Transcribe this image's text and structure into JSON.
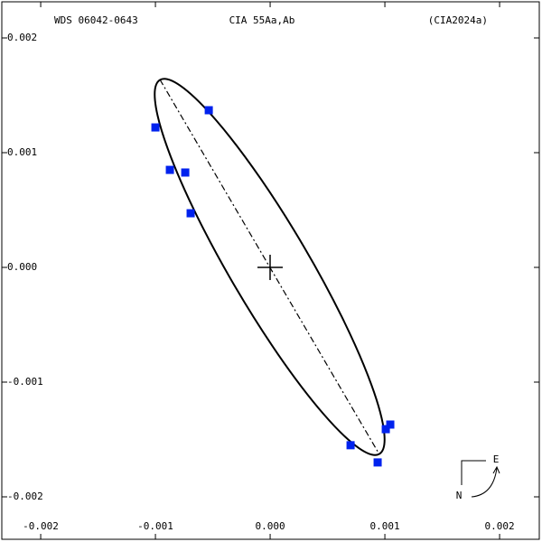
{
  "chart_data": {
    "type": "scatter",
    "title": "WDS 06042-0643",
    "subtitle": "CIA  55Aa,Ab",
    "annotations": [
      "(CIA2024a)",
      "E",
      "N"
    ],
    "color": "#0022ee",
    "x": [
      -0.001,
      -0.000874,
      -0.00074,
      -0.000693,
      -0.000535,
      0.000701,
      0.000937,
      0.001008,
      0.001047
    ],
    "values": [
      0.00122,
      0.00085,
      0.000827,
      0.000472,
      0.00137,
      -0.00155,
      -0.0017,
      -0.00141,
      -0.00137
    ],
    "xlim": [
      -0.002339,
      0.002346
    ],
    "ylim": [
      -0.00237,
      0.002315
    ],
    "xticks": [
      {
        "value": -0.002,
        "label": "-0.002"
      },
      {
        "value": -0.001,
        "label": "-0.001"
      },
      {
        "value": 0,
        "label": "0.000"
      },
      {
        "value": 0.001,
        "label": "0.001"
      },
      {
        "value": 0.002,
        "label": "0.002"
      }
    ],
    "yticks": [
      {
        "value": 0.002,
        "label": "0.002"
      },
      {
        "value": 0.001,
        "label": "0.001"
      },
      {
        "value": 0,
        "label": "0.000"
      },
      {
        "value": -0.001,
        "label": "-0.001"
      },
      {
        "value": -0.002,
        "label": "-0.002"
      }
    ]
  }
}
